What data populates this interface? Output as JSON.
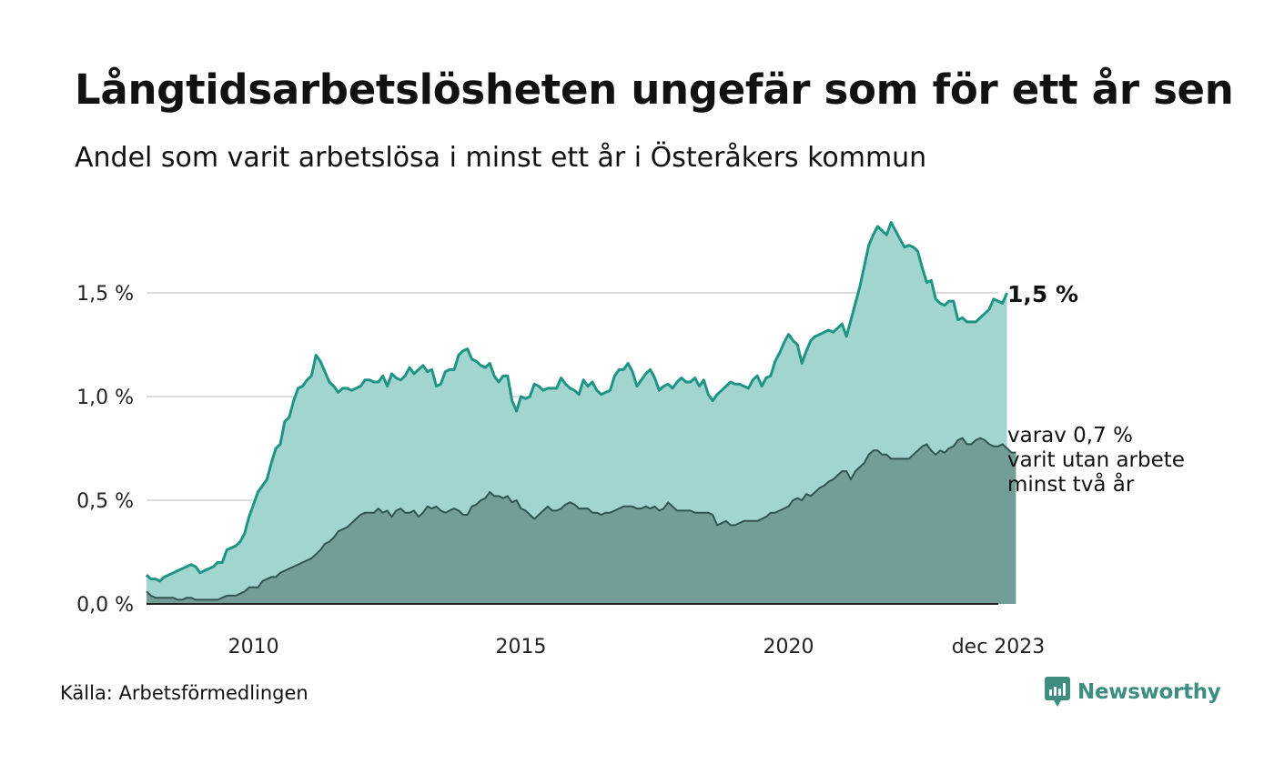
{
  "title": "Långtidsarbetslösheten ungefär som för ett år sen",
  "subtitle": "Andel som varit arbetslösa i minst ett år i Österåkers kommun",
  "source": "Källa: Arbetsförmedlingen",
  "brand": "Newsworthy",
  "colors": {
    "total_fill": "#a3d5d0",
    "total_line": "#1e9485",
    "long_fill": "#729e97",
    "long_line": "#31554f",
    "grid": "#dcdcdc",
    "axis": "#222222",
    "brand": "#3d8d80"
  },
  "chart_data": {
    "type": "area",
    "title": "Långtidsarbetslösheten ungefär som för ett år sen",
    "subtitle": "Andel som varit arbetslösa i minst ett år i Österåkers kommun",
    "unit": "%",
    "x_start": 2008.0,
    "x_step": 0.08333,
    "xlim": [
      2008.0,
      2023.92
    ],
    "ylim": [
      0,
      1.9
    ],
    "y_ticks": [
      {
        "value": 0.0,
        "label": "0,0 %"
      },
      {
        "value": 0.5,
        "label": "0,5 %"
      },
      {
        "value": 1.0,
        "label": "1,0 %"
      },
      {
        "value": 1.5,
        "label": "1,5 %"
      }
    ],
    "x_ticks": [
      {
        "value": 2010,
        "label": "2010"
      },
      {
        "value": 2015,
        "label": "2015"
      },
      {
        "value": 2020,
        "label": "2020"
      },
      {
        "value": 2023.92,
        "label": "dec 2023"
      }
    ],
    "series": [
      {
        "name": "Arbetslösa minst ett år",
        "values": [
          0.14,
          0.12,
          0.12,
          0.11,
          0.13,
          0.14,
          0.15,
          0.16,
          0.17,
          0.18,
          0.19,
          0.18,
          0.15,
          0.16,
          0.17,
          0.18,
          0.2,
          0.2,
          0.26,
          0.27,
          0.28,
          0.3,
          0.34,
          0.42,
          0.48,
          0.54,
          0.57,
          0.6,
          0.68,
          0.75,
          0.77,
          0.88,
          0.9,
          0.98,
          1.04,
          1.05,
          1.08,
          1.1,
          1.2,
          1.17,
          1.12,
          1.07,
          1.05,
          1.02,
          1.04,
          1.04,
          1.03,
          1.04,
          1.05,
          1.08,
          1.08,
          1.07,
          1.07,
          1.1,
          1.05,
          1.11,
          1.09,
          1.08,
          1.1,
          1.14,
          1.11,
          1.13,
          1.15,
          1.12,
          1.13,
          1.05,
          1.06,
          1.12,
          1.13,
          1.13,
          1.2,
          1.22,
          1.23,
          1.18,
          1.17,
          1.15,
          1.14,
          1.16,
          1.1,
          1.07,
          1.1,
          1.1,
          0.98,
          0.93,
          1.0,
          0.99,
          1.0,
          1.06,
          1.05,
          1.03,
          1.04,
          1.04,
          1.04,
          1.09,
          1.06,
          1.04,
          1.03,
          1.01,
          1.08,
          1.05,
          1.07,
          1.03,
          1.01,
          1.02,
          1.03,
          1.1,
          1.13,
          1.13,
          1.16,
          1.12,
          1.05,
          1.08,
          1.11,
          1.13,
          1.09,
          1.03,
          1.05,
          1.06,
          1.04,
          1.07,
          1.09,
          1.07,
          1.07,
          1.09,
          1.05,
          1.08,
          1.01,
          0.98,
          1.01,
          1.03,
          1.05,
          1.07,
          1.06,
          1.06,
          1.05,
          1.04,
          1.08,
          1.1,
          1.05,
          1.09,
          1.1,
          1.17,
          1.21,
          1.26,
          1.3,
          1.27,
          1.25,
          1.16,
          1.22,
          1.27,
          1.29,
          1.3,
          1.31,
          1.32,
          1.31,
          1.33,
          1.35,
          1.29,
          1.37,
          1.45,
          1.53,
          1.63,
          1.73,
          1.78,
          1.82,
          1.8,
          1.78,
          1.84,
          1.8,
          1.76,
          1.72,
          1.73,
          1.72,
          1.7,
          1.62,
          1.55,
          1.56,
          1.47,
          1.45,
          1.44,
          1.46,
          1.46,
          1.37,
          1.38,
          1.36,
          1.36,
          1.36,
          1.38,
          1.4,
          1.42,
          1.47,
          1.46,
          1.45,
          1.5
        ]
      },
      {
        "name": "varav minst två år",
        "values": [
          0.06,
          0.04,
          0.03,
          0.03,
          0.03,
          0.03,
          0.03,
          0.02,
          0.02,
          0.03,
          0.03,
          0.02,
          0.02,
          0.02,
          0.02,
          0.02,
          0.02,
          0.03,
          0.04,
          0.04,
          0.04,
          0.05,
          0.06,
          0.08,
          0.08,
          0.08,
          0.11,
          0.12,
          0.13,
          0.13,
          0.15,
          0.16,
          0.17,
          0.18,
          0.19,
          0.2,
          0.21,
          0.22,
          0.24,
          0.26,
          0.29,
          0.3,
          0.32,
          0.35,
          0.36,
          0.37,
          0.39,
          0.41,
          0.43,
          0.44,
          0.44,
          0.44,
          0.46,
          0.44,
          0.45,
          0.42,
          0.45,
          0.46,
          0.44,
          0.44,
          0.45,
          0.42,
          0.44,
          0.47,
          0.46,
          0.47,
          0.45,
          0.44,
          0.45,
          0.46,
          0.45,
          0.43,
          0.43,
          0.47,
          0.48,
          0.5,
          0.51,
          0.54,
          0.52,
          0.52,
          0.51,
          0.52,
          0.49,
          0.5,
          0.46,
          0.45,
          0.43,
          0.41,
          0.43,
          0.45,
          0.47,
          0.45,
          0.45,
          0.46,
          0.48,
          0.49,
          0.48,
          0.46,
          0.46,
          0.46,
          0.44,
          0.44,
          0.43,
          0.44,
          0.44,
          0.45,
          0.46,
          0.47,
          0.47,
          0.47,
          0.46,
          0.46,
          0.47,
          0.46,
          0.47,
          0.45,
          0.46,
          0.49,
          0.47,
          0.45,
          0.45,
          0.45,
          0.45,
          0.44,
          0.44,
          0.44,
          0.44,
          0.43,
          0.38,
          0.39,
          0.4,
          0.38,
          0.38,
          0.39,
          0.4,
          0.4,
          0.4,
          0.4,
          0.41,
          0.42,
          0.44,
          0.44,
          0.45,
          0.46,
          0.47,
          0.5,
          0.51,
          0.5,
          0.53,
          0.52,
          0.54,
          0.56,
          0.57,
          0.59,
          0.6,
          0.62,
          0.64,
          0.64,
          0.6,
          0.64,
          0.66,
          0.68,
          0.72,
          0.74,
          0.74,
          0.72,
          0.72,
          0.7,
          0.7,
          0.7,
          0.7,
          0.7,
          0.72,
          0.74,
          0.76,
          0.77,
          0.74,
          0.72,
          0.74,
          0.73,
          0.75,
          0.76,
          0.79,
          0.8,
          0.77,
          0.77,
          0.79,
          0.8,
          0.79,
          0.77,
          0.76,
          0.76,
          0.77,
          0.75,
          0.73,
          0.73
        ]
      }
    ],
    "end_label_total": "1,5 %",
    "end_label_long": [
      "varav 0,7 %",
      "varit utan arbete",
      "minst två år"
    ]
  }
}
